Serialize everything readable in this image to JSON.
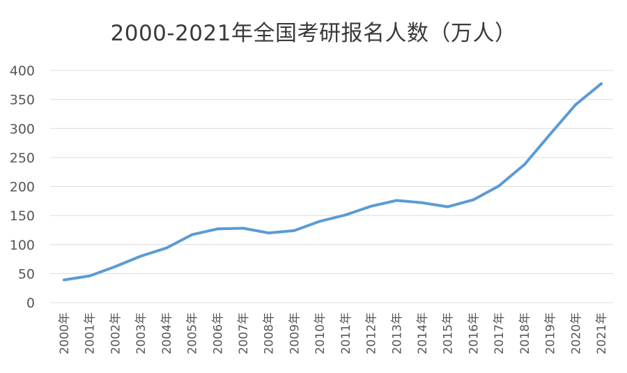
{
  "chart_data": {
    "type": "line",
    "title": "2000-2021年全国考研报名人数（万人）",
    "xlabel": "",
    "ylabel": "",
    "categories": [
      "2000年",
      "2001年",
      "2002年",
      "2003年",
      "2004年",
      "2005年",
      "2006年",
      "2007年",
      "2008年",
      "2009年",
      "2010年",
      "2011年",
      "2012年",
      "2013年",
      "2014年",
      "2015年",
      "2016年",
      "2017年",
      "2018年",
      "2019年",
      "2020年",
      "2021年"
    ],
    "series": [
      {
        "values": [
          39,
          46,
          62,
          80,
          94,
          117,
          127,
          128,
          120,
          124,
          140,
          151,
          166,
          176,
          172,
          165,
          177,
          201,
          238,
          290,
          341,
          377
        ]
      }
    ],
    "ylim": [
      0,
      400
    ],
    "yticks": [
      0,
      50,
      100,
      150,
      200,
      250,
      300,
      350,
      400
    ],
    "grid": true,
    "legend": "none",
    "line_color": "#5b9bd5",
    "grid_color": "#dcdcdc"
  }
}
